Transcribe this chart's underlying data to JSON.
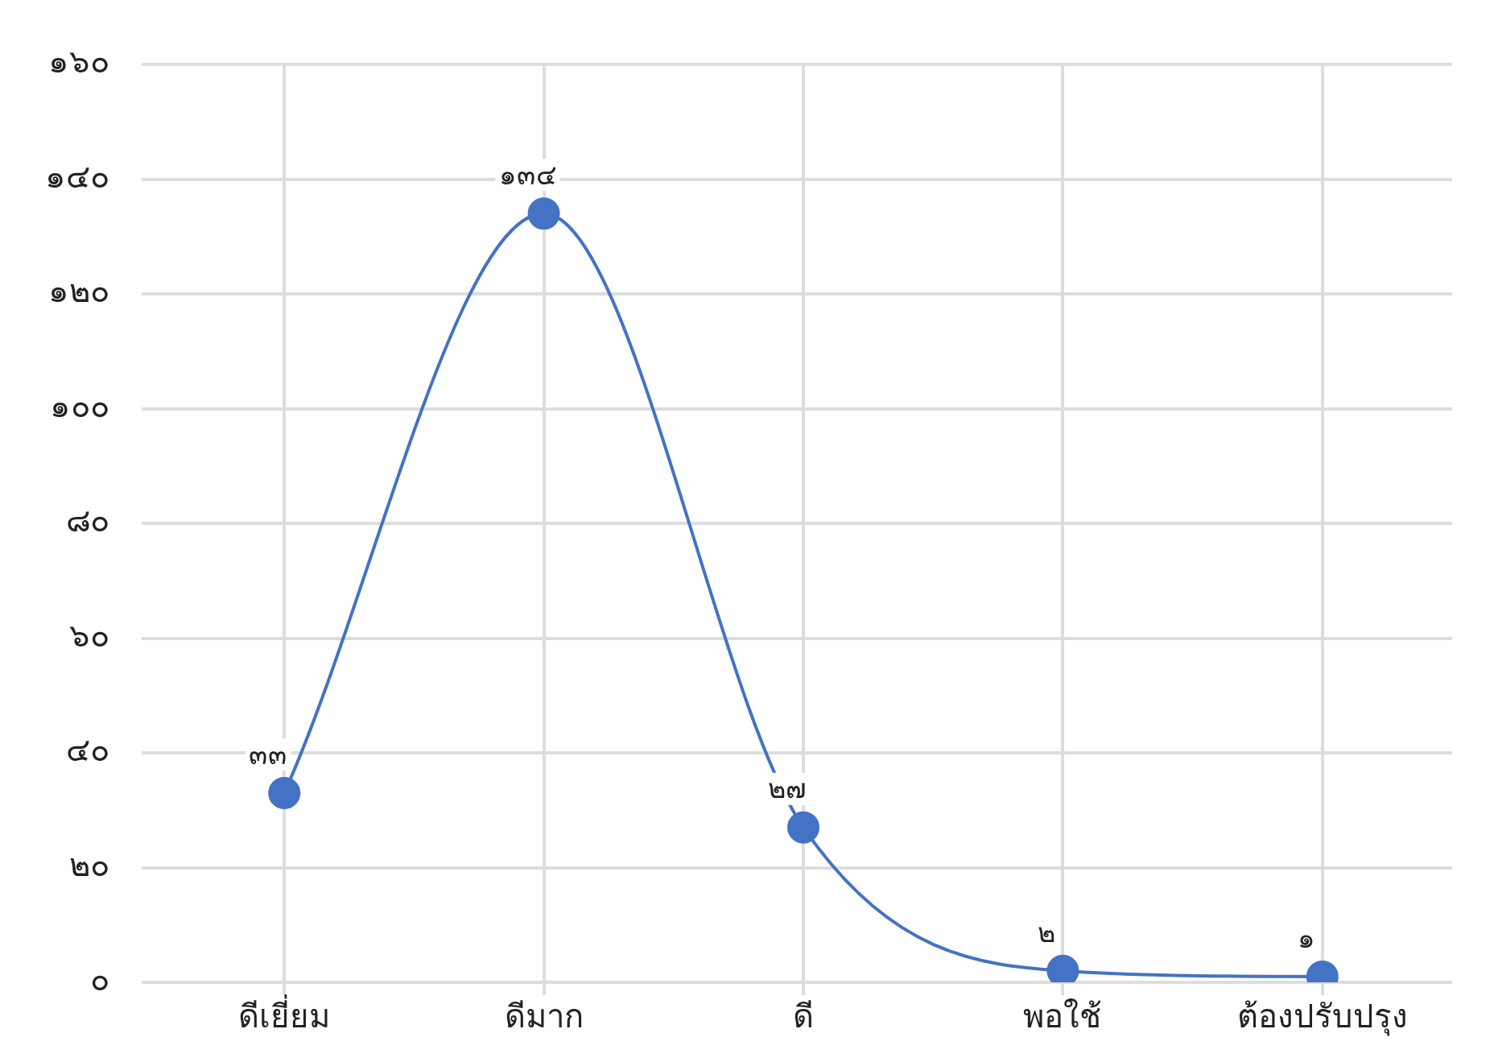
{
  "chart_data": {
    "type": "line",
    "categories": [
      "ดีเยี่ยม",
      "ดีมาก",
      "ดี",
      "พอใช้",
      "ต้องปรับปรุง"
    ],
    "values": [
      33,
      134,
      27,
      2,
      1
    ],
    "value_labels": [
      "๓๓",
      "๑๓๔",
      "๒๗",
      "๒",
      "๑"
    ],
    "color": "#4472c4",
    "marker": "circle",
    "line_style": "solid",
    "grid": true,
    "ylim": [
      0,
      160
    ],
    "yticks": [
      {
        "value": 0,
        "label": "๐"
      },
      {
        "value": 20,
        "label": "๒๐"
      },
      {
        "value": 40,
        "label": "๔๐"
      },
      {
        "value": 60,
        "label": "๖๐"
      },
      {
        "value": 80,
        "label": "๘๐"
      },
      {
        "value": 100,
        "label": "๑๐๐"
      },
      {
        "value": 120,
        "label": "๑๒๐"
      },
      {
        "value": 140,
        "label": "๑๔๐"
      },
      {
        "value": 160,
        "label": "๑๖๐"
      }
    ]
  }
}
